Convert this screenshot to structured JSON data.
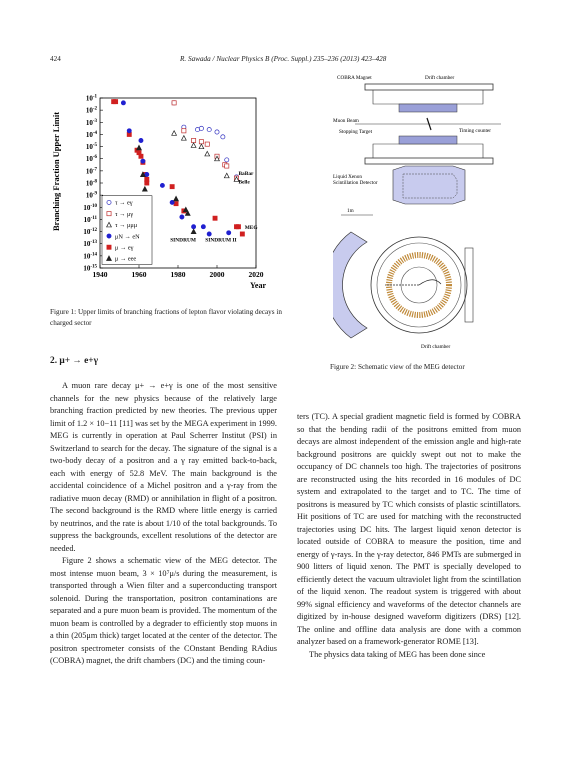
{
  "header": {
    "page_number": "424",
    "citation": "R. Sawada / Nuclear Physics B (Proc. Suppl.) 235–236 (2013) 423–428"
  },
  "figure1": {
    "caption": "Figure 1: Upper limits of branching fractions of lepton flavor violating decays in charged sector",
    "chart_data": {
      "type": "scatter",
      "ylabel": "Branching Fraction Upper Limit",
      "xlabel": "Year",
      "log_y": true,
      "xlim": [
        1940,
        2020
      ],
      "ylim_exponent": [
        -15,
        -1
      ],
      "x_ticks": [
        "1940",
        "1960",
        "1980",
        "2000",
        "2020"
      ],
      "y_ticks": [
        "10-1",
        "10-2",
        "10-3",
        "10-4",
        "10-5",
        "10-6",
        "10-7",
        "10-8",
        "10-9",
        "10-10",
        "10-11",
        "10-12",
        "10-13",
        "10-14",
        "10-15"
      ],
      "legend": [
        {
          "label": "τ → eγ",
          "marker": "circle-open",
          "color": "#3030c0"
        },
        {
          "label": "τ → μγ",
          "marker": "square-open",
          "color": "#c03030"
        },
        {
          "label": "τ → μμμ",
          "marker": "triangle-open",
          "color": "#202020"
        },
        {
          "label": "μN → eN",
          "marker": "circle-filled",
          "color": "#2020d0"
        },
        {
          "label": "μ → eγ",
          "marker": "square-filled",
          "color": "#d02020"
        },
        {
          "label": "μ → eee",
          "marker": "triangle-filled",
          "color": "#202020"
        }
      ],
      "annotations": [
        "BaBar",
        "Belle",
        "MEG",
        "SINDRUM",
        "SINDRUM II"
      ],
      "series": [
        {
          "name": "μ → eγ",
          "points": [
            [
              1947,
              -1.3
            ],
            [
              1948,
              -1.3
            ],
            [
              1955,
              -4.0
            ],
            [
              1959,
              -5.3
            ],
            [
              1960,
              -5.5
            ],
            [
              1961,
              -5.8
            ],
            [
              1962,
              -6.3
            ],
            [
              1963,
              -7.3
            ],
            [
              1964,
              -7.7
            ],
            [
              1964,
              -8.0
            ],
            [
              1977,
              -8.3
            ],
            [
              1979,
              -9.7
            ],
            [
              1983,
              -10.3
            ],
            [
              1999,
              -10.9
            ],
            [
              2010,
              -11.6
            ],
            [
              2011,
              -11.6
            ],
            [
              2013,
              -12.2
            ]
          ]
        },
        {
          "name": "μN → eN",
          "points": [
            [
              1952,
              -1.4
            ],
            [
              1955,
              -3.7
            ],
            [
              1961,
              -4.5
            ],
            [
              1962,
              -6.2
            ],
            [
              1964,
              -7.3
            ],
            [
              1972,
              -8.2
            ],
            [
              1977,
              -9.6
            ],
            [
              1982,
              -10.8
            ],
            [
              1988,
              -11.6
            ],
            [
              1993,
              -11.6
            ],
            [
              1996,
              -12.2
            ],
            [
              2006,
              -12.1
            ]
          ]
        },
        {
          "name": "μ → eee",
          "points": [
            [
              1960,
              -5.1
            ],
            [
              1962,
              -7.3
            ],
            [
              1963,
              -8.5
            ],
            [
              1979,
              -9.3
            ],
            [
              1984,
              -10.2
            ],
            [
              1985,
              -10.5
            ],
            [
              1988,
              -12.0
            ]
          ]
        },
        {
          "name": "τ → eγ",
          "points": [
            [
              1978,
              -1.4
            ],
            [
              1983,
              -3.4
            ],
            [
              1990,
              -3.6
            ],
            [
              1992,
              -3.5
            ],
            [
              1996,
              -3.6
            ],
            [
              2000,
              -3.8
            ],
            [
              2003,
              -4.2
            ],
            [
              2005,
              -6.1
            ],
            [
              2010,
              -7.5
            ]
          ]
        },
        {
          "name": "τ → μγ",
          "points": [
            [
              1978,
              -1.4
            ],
            [
              1983,
              -3.7
            ],
            [
              1988,
              -4.5
            ],
            [
              1992,
              -4.6
            ],
            [
              1995,
              -4.8
            ],
            [
              2000,
              -5.8
            ],
            [
              2004,
              -6.5
            ],
            [
              2005,
              -6.6
            ],
            [
              2010,
              -7.6
            ]
          ]
        },
        {
          "name": "τ → μμμ",
          "points": [
            [
              1978,
              -3.9
            ],
            [
              1983,
              -4.3
            ],
            [
              1988,
              -4.9
            ],
            [
              1992,
              -5.0
            ],
            [
              1995,
              -5.6
            ],
            [
              2000,
              -6.0
            ],
            [
              2005,
              -7.4
            ],
            [
              2010,
              -7.7
            ]
          ]
        }
      ]
    }
  },
  "figure2": {
    "caption": "Figure 2: Schematic view of the MEG detector",
    "labels": {
      "magnet": "COBRA Magnet",
      "drift": "Drift chamber",
      "beam": "Muon Beam",
      "target": "Stopping Target",
      "timing": "Timing counter",
      "lxe1": "Liquid Xenon",
      "lxe2": "Scintillation Detector",
      "scale": "1m",
      "drift2": "Drift chamber"
    }
  },
  "section": {
    "heading": "2. μ+ → e+γ",
    "left_paragraphs": [
      "A muon rare decay μ+ → e+γ is one of the most sensitive channels for the new physics because of the relatively large branching fraction predicted by new theories. The previous upper limit of 1.2 × 10−11 [11] was set by the MEGA experiment in 1999. MEG is currently in operation at Paul Scherrer Institut (PSI) in Switzerland to search for the decay. The signature of the signal is a two-body decay of a positron and a γ ray emitted back-to-back, each with energy of 52.8 MeV. The main background is the accidental coincidence of a Michel positron and a γ-ray from the radiative muon decay (RMD) or annihilation in flight of a positron. The second background is the RMD where little energy is carried by neutrinos, and the rate is about 1/10 of the total backgrounds. To suppress the backgrounds, excellent resolutions of the detector are needed.",
      "Figure 2 shows a schematic view of the MEG detector. The most intense muon beam, 3 × 10⁷μ/s during the measurement, is transported through a Wien filter and a superconducting transport solenoid. During the transportation, positron contaminations are separated and a pure muon beam is provided. The momentum of the muon beam is controlled by a degrader to efficiently stop muons in a thin (205μm thick) target located at the center of the detector. The positron spectrometer consists of the COnstant Bending RAdius (COBRA) magnet, the drift chambers (DC) and the timing coun-"
    ],
    "right_paragraphs": [
      "ters (TC). A special gradient magnetic field is formed by COBRA so that the bending radii of the positrons emitted from muon decays are almost independent of the emission angle and high-rate background positrons are quickly swept out not to make the occupancy of DC channels too high. The trajectories of positrons are reconstructed using the hits recorded in 16 modules of DC system and extrapolated to the target and to TC. The time of positrons is measured by TC which consists of plastic scintillators. Hit positions of TC are used for matching with the reconstructed trajectories using DC hits. The largest liquid xenon detector is located outside of COBRA to measure the position, time and energy of γ-rays. In the γ-ray detector, 846 PMTs are submerged in 900 litters of liquid xenon. The PMT is specially developed to efficiently detect the vacuum ultraviolet light from the scintillation of the liquid xenon. The readout system is triggered with about 99% signal efficiency and waveforms of the detector channels are digitized by in-house designed waveform digitizers (DRS) [12]. The online and offline data analysis are done with a common analyzer based on a framework-generator ROME [13].",
      "The physics data taking of MEG has been done since"
    ]
  }
}
